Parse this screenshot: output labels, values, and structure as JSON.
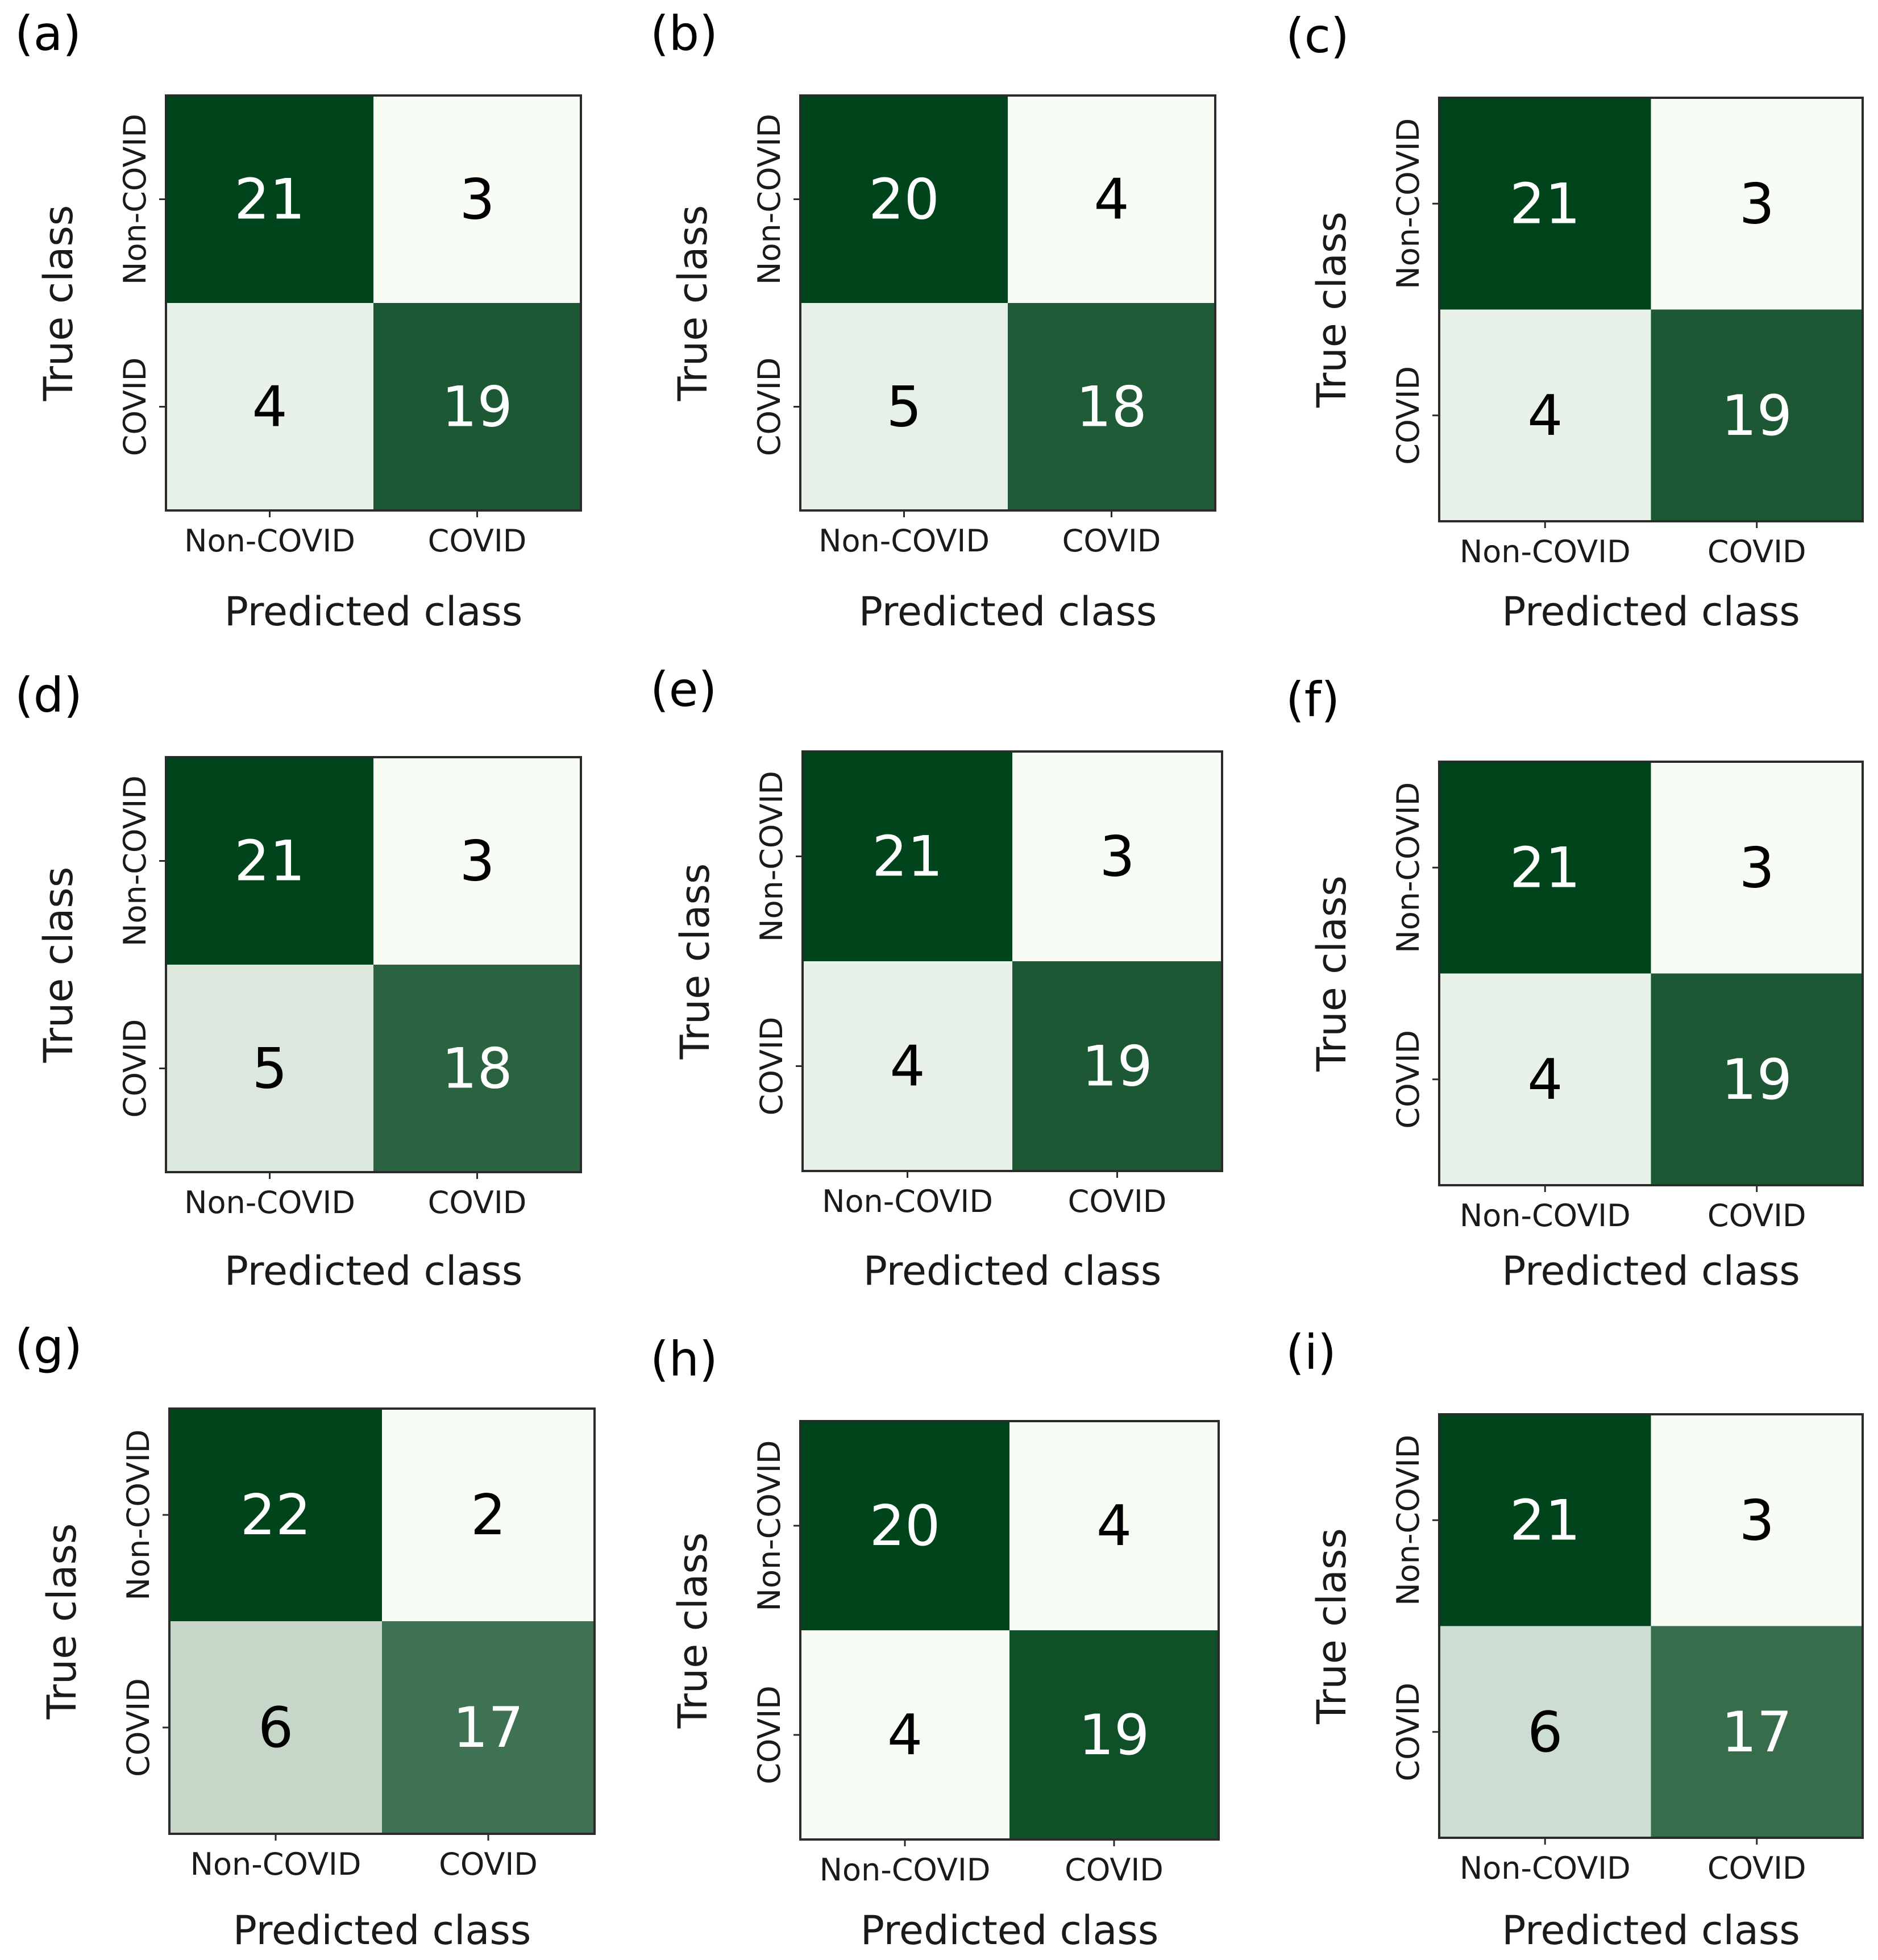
{
  "colors": {
    "min": "#f7fcf5",
    "max": "#00441b",
    "text_light": "#ffffff",
    "text_dark": "#000000"
  },
  "chart_data": [
    {
      "panel": "(a)",
      "type": "heatmap",
      "xlabel": "Predicted class",
      "ylabel": "True class",
      "x_categories": [
        "Non-COVID",
        "COVID"
      ],
      "y_categories": [
        "Non-COVID",
        "COVID"
      ],
      "matrix": [
        [
          21,
          3
        ],
        [
          4,
          19
        ]
      ]
    },
    {
      "panel": "(b)",
      "type": "heatmap",
      "xlabel": "Predicted class",
      "ylabel": "True class",
      "x_categories": [
        "Non-COVID",
        "COVID"
      ],
      "y_categories": [
        "Non-COVID",
        "COVID"
      ],
      "matrix": [
        [
          20,
          4
        ],
        [
          5,
          18
        ]
      ]
    },
    {
      "panel": "(c)",
      "type": "heatmap",
      "xlabel": "Predicted class",
      "ylabel": "True class",
      "x_categories": [
        "Non-COVID",
        "COVID"
      ],
      "y_categories": [
        "Non-COVID",
        "COVID"
      ],
      "matrix": [
        [
          21,
          3
        ],
        [
          4,
          19
        ]
      ]
    },
    {
      "panel": "(d)",
      "type": "heatmap",
      "xlabel": "Predicted class",
      "ylabel": "True class",
      "x_categories": [
        "Non-COVID",
        "COVID"
      ],
      "y_categories": [
        "Non-COVID",
        "COVID"
      ],
      "matrix": [
        [
          21,
          3
        ],
        [
          5,
          18
        ]
      ]
    },
    {
      "panel": "(e)",
      "type": "heatmap",
      "xlabel": "Predicted class",
      "ylabel": "True class",
      "x_categories": [
        "Non-COVID",
        "COVID"
      ],
      "y_categories": [
        "Non-COVID",
        "COVID"
      ],
      "matrix": [
        [
          21,
          3
        ],
        [
          4,
          19
        ]
      ]
    },
    {
      "panel": "(f)",
      "type": "heatmap",
      "xlabel": "Predicted class",
      "ylabel": "True class",
      "x_categories": [
        "Non-COVID",
        "COVID"
      ],
      "y_categories": [
        "Non-COVID",
        "COVID"
      ],
      "matrix": [
        [
          21,
          3
        ],
        [
          4,
          19
        ]
      ]
    },
    {
      "panel": "(g)",
      "type": "heatmap",
      "xlabel": "Predicted class",
      "ylabel": "True class",
      "x_categories": [
        "Non-COVID",
        "COVID"
      ],
      "y_categories": [
        "Non-COVID",
        "COVID"
      ],
      "matrix": [
        [
          22,
          2
        ],
        [
          6,
          17
        ]
      ]
    },
    {
      "panel": "(h)",
      "type": "heatmap",
      "xlabel": "Predicted class",
      "ylabel": "True class",
      "x_categories": [
        "Non-COVID",
        "COVID"
      ],
      "y_categories": [
        "Non-COVID",
        "COVID"
      ],
      "matrix": [
        [
          20,
          4
        ],
        [
          4,
          19
        ]
      ]
    },
    {
      "panel": "(i)",
      "type": "heatmap",
      "xlabel": "Predicted class",
      "ylabel": "True class",
      "x_categories": [
        "Non-COVID",
        "COVID"
      ],
      "y_categories": [
        "Non-COVID",
        "COVID"
      ],
      "matrix": [
        [
          21,
          3
        ],
        [
          6,
          17
        ]
      ]
    }
  ]
}
